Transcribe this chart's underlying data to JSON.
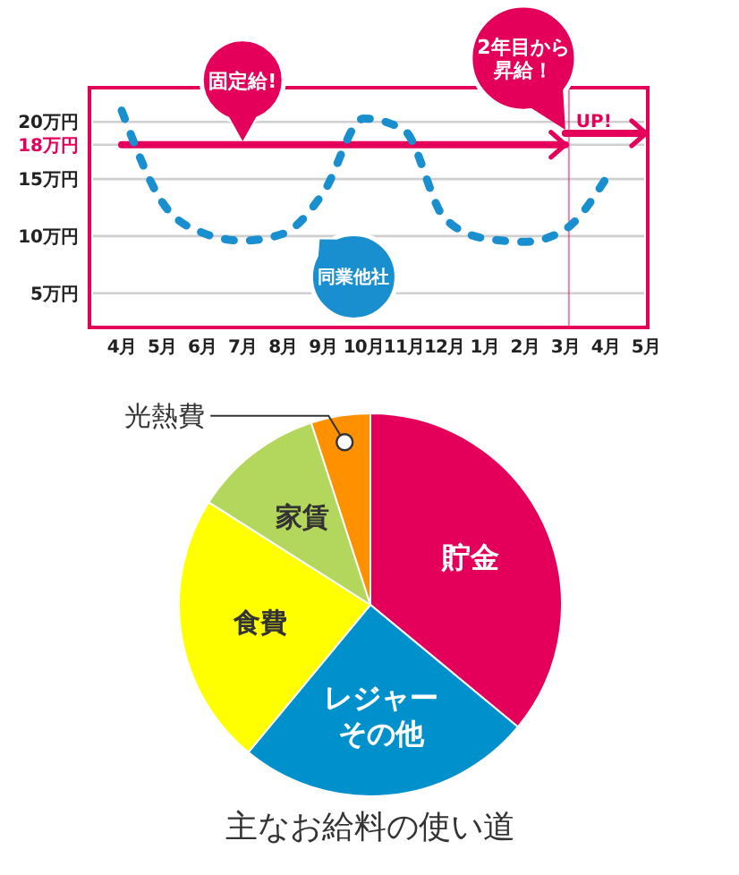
{
  "chart_data": [
    {
      "type": "line",
      "categories": [
        "4月",
        "5月",
        "6月",
        "7月",
        "8月",
        "9月",
        "10月",
        "11月",
        "12月",
        "1月",
        "2月",
        "3月",
        "4月",
        "5月"
      ],
      "series": [
        {
          "color": "#e4005a",
          "values": [
            18,
            18,
            18,
            18,
            18,
            18,
            18,
            18,
            18,
            18,
            18,
            18,
            null,
            null
          ]
        },
        {
          "color": "#e4005a",
          "values": [
            null,
            null,
            null,
            null,
            null,
            null,
            null,
            null,
            null,
            null,
            null,
            19,
            19,
            19
          ]
        },
        {
          "name": "同業他社",
          "color": "#1a8fcf",
          "line_style": "dashed",
          "values": [
            21,
            13,
            10.3,
            9.6,
            10.2,
            13.8,
            20.3,
            19.3,
            11.6,
            9.8,
            9.5,
            10.6,
            15,
            null
          ]
        }
      ],
      "ylim": [
        2,
        23
      ],
      "yticks": [
        {
          "value": 5,
          "label": "5万円"
        },
        {
          "value": 10,
          "label": "10万円"
        },
        {
          "value": 15,
          "label": "15万円"
        },
        {
          "value": 18,
          "label": "18万円"
        },
        {
          "value": 20,
          "label": "20万円"
        }
      ],
      "grid": "y",
      "line_style": "solid",
      "ref_lines": [
        {
          "axis": "x",
          "value": "3月",
          "label": "UP!",
          "color": "#e4005a"
        }
      ],
      "annotations": [
        {
          "text": "固定給!",
          "x": "7月",
          "y": 18
        },
        {
          "text": "2年目から昇給！",
          "x": "3月",
          "y": 19
        }
      ]
    },
    {
      "type": "pie",
      "title": "主なお給料の使い道",
      "categories": [
        "貯金",
        "レジャーその他",
        "食費",
        "家賃",
        "光熱費"
      ],
      "values": [
        36,
        25,
        23,
        11,
        5
      ],
      "colors": [
        "#e4005a",
        "#0090cc",
        "#ffff00",
        "#b3d65c",
        "#ff9100"
      ]
    }
  ]
}
